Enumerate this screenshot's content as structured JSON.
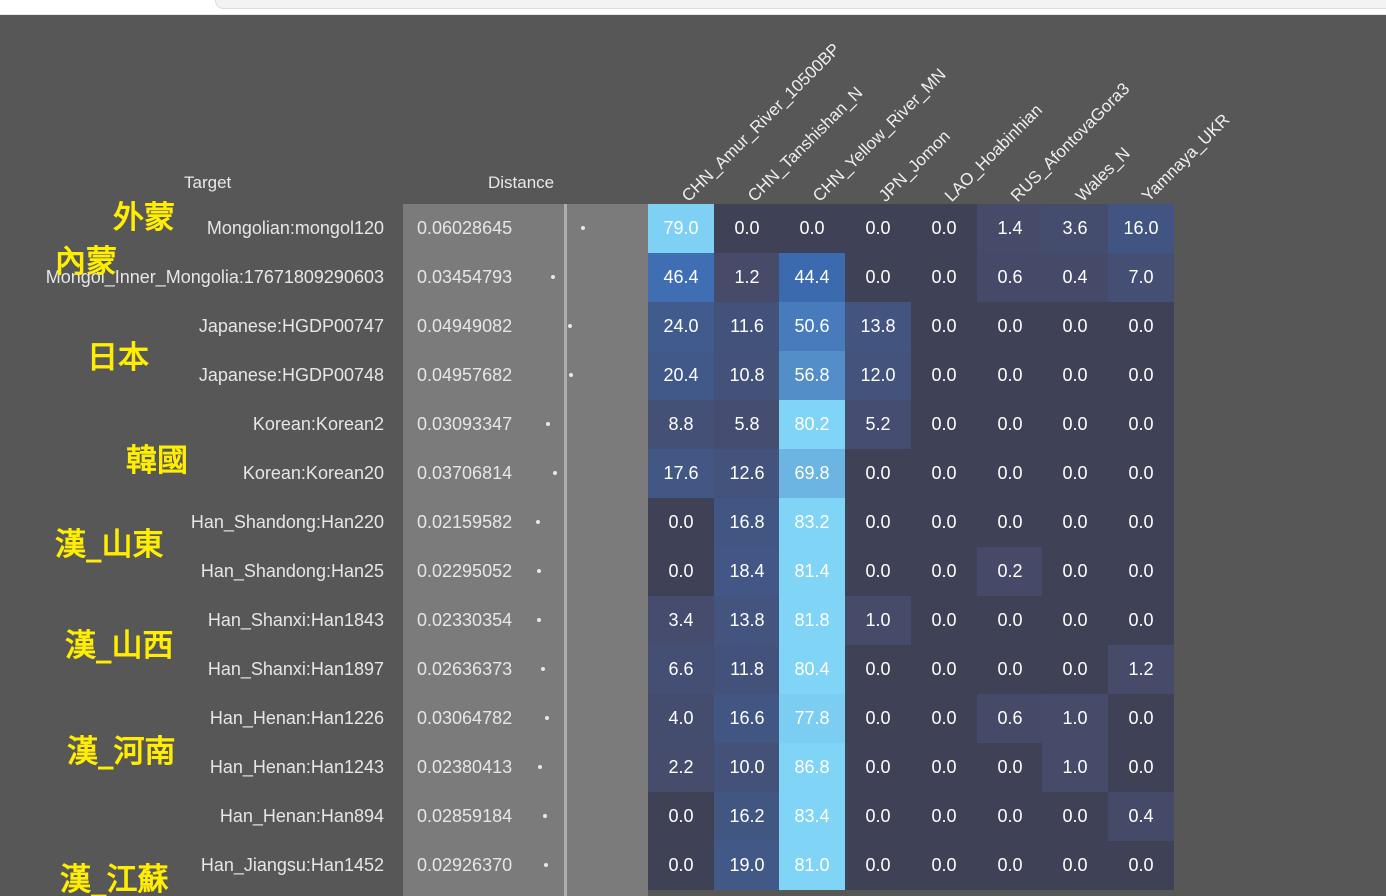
{
  "header": {
    "target_label": "Target",
    "distance_label": "Distance"
  },
  "columns": [
    "CHN_Amur_River_10500BP",
    "CHN_Tanshishan_N",
    "CHN_Yellow_River_MN",
    "JPN_Jomon",
    "LAO_Hoabinhian",
    "RUS_AfontovaGora3",
    "Wales_N",
    "Yamnaya_UKR"
  ],
  "rows": [
    {
      "target": "Mongolian:mongol120",
      "distance": "0.06028645",
      "values": [
        "79.0",
        "0.0",
        "0.0",
        "0.0",
        "0.0",
        "1.4",
        "3.6",
        "16.0"
      ]
    },
    {
      "target": "Mongol_Inner_Mongolia:17671809290603",
      "distance": "0.03454793",
      "values": [
        "46.4",
        "1.2",
        "44.4",
        "0.0",
        "0.0",
        "0.6",
        "0.4",
        "7.0"
      ]
    },
    {
      "target": "Japanese:HGDP00747",
      "distance": "0.04949082",
      "values": [
        "24.0",
        "11.6",
        "50.6",
        "13.8",
        "0.0",
        "0.0",
        "0.0",
        "0.0"
      ]
    },
    {
      "target": "Japanese:HGDP00748",
      "distance": "0.04957682",
      "values": [
        "20.4",
        "10.8",
        "56.8",
        "12.0",
        "0.0",
        "0.0",
        "0.0",
        "0.0"
      ]
    },
    {
      "target": "Korean:Korean2",
      "distance": "0.03093347",
      "values": [
        "8.8",
        "5.8",
        "80.2",
        "5.2",
        "0.0",
        "0.0",
        "0.0",
        "0.0"
      ]
    },
    {
      "target": "Korean:Korean20",
      "distance": "0.03706814",
      "values": [
        "17.6",
        "12.6",
        "69.8",
        "0.0",
        "0.0",
        "0.0",
        "0.0",
        "0.0"
      ]
    },
    {
      "target": "Han_Shandong:Han220",
      "distance": "0.02159582",
      "values": [
        "0.0",
        "16.8",
        "83.2",
        "0.0",
        "0.0",
        "0.0",
        "0.0",
        "0.0"
      ]
    },
    {
      "target": "Han_Shandong:Han25",
      "distance": "0.02295052",
      "values": [
        "0.0",
        "18.4",
        "81.4",
        "0.0",
        "0.0",
        "0.2",
        "0.0",
        "0.0"
      ]
    },
    {
      "target": "Han_Shanxi:Han1843",
      "distance": "0.02330354",
      "values": [
        "3.4",
        "13.8",
        "81.8",
        "1.0",
        "0.0",
        "0.0",
        "0.0",
        "0.0"
      ]
    },
    {
      "target": "Han_Shanxi:Han1897",
      "distance": "0.02636373",
      "values": [
        "6.6",
        "11.8",
        "80.4",
        "0.0",
        "0.0",
        "0.0",
        "0.0",
        "1.2"
      ]
    },
    {
      "target": "Han_Henan:Han1226",
      "distance": "0.03064782",
      "values": [
        "4.0",
        "16.6",
        "77.8",
        "0.0",
        "0.0",
        "0.6",
        "1.0",
        "0.0"
      ]
    },
    {
      "target": "Han_Henan:Han1243",
      "distance": "0.02380413",
      "values": [
        "2.2",
        "10.0",
        "86.8",
        "0.0",
        "0.0",
        "0.0",
        "1.0",
        "0.0"
      ]
    },
    {
      "target": "Han_Henan:Han894",
      "distance": "0.02859184",
      "values": [
        "0.0",
        "16.2",
        "83.4",
        "0.0",
        "0.0",
        "0.0",
        "0.0",
        "0.4"
      ]
    },
    {
      "target": "Han_Jiangsu:Han1452",
      "distance": "0.02926370",
      "values": [
        "0.0",
        "19.0",
        "81.0",
        "0.0",
        "0.0",
        "0.0",
        "0.0",
        "0.0"
      ]
    }
  ],
  "group_labels": [
    "外蒙",
    "內蒙",
    "日本",
    "韓國",
    "漢_山東",
    "漢_山西",
    "漢_河南",
    "漢_江蘇"
  ],
  "colors": {
    "background": "#575757",
    "distance_band": "#7b7b7b",
    "annotation": "#ffee00",
    "cell_zero": "#3f4156",
    "cell_max": "#80d4f6"
  }
}
